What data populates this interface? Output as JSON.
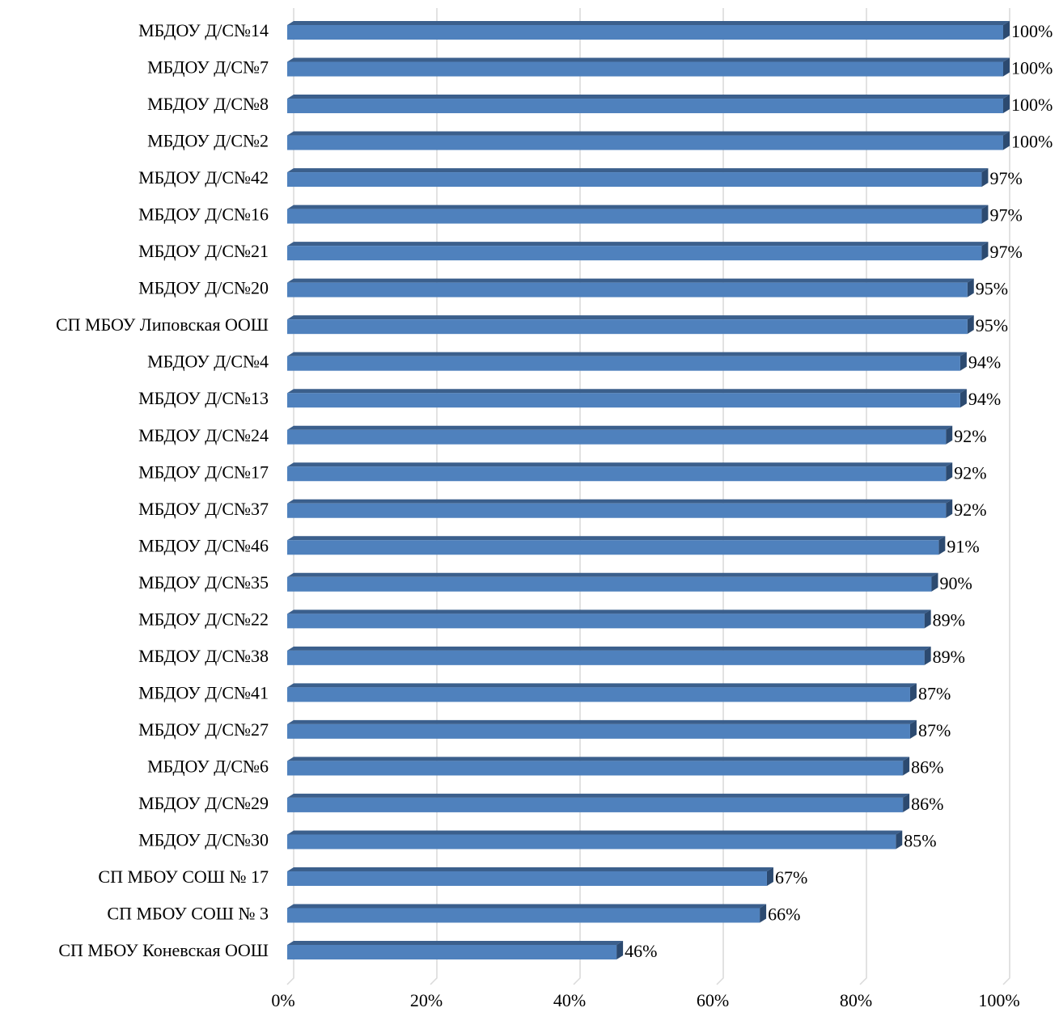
{
  "chart_data": {
    "type": "barh",
    "categories": [
      "МБДОУ Д/С№14",
      "МБДОУ Д/С№7",
      "МБДОУ Д/С№8",
      "МБДОУ Д/С№2",
      "МБДОУ Д/С№42",
      "МБДОУ Д/С№16",
      "МБДОУ Д/С№21",
      "МБДОУ Д/С№20",
      "СП МБОУ Липовская ООШ",
      "МБДОУ Д/С№4",
      "МБДОУ Д/С№13",
      "МБДОУ Д/С№24",
      "МБДОУ Д/С№17",
      "МБДОУ Д/С№37",
      "МБДОУ Д/С№46",
      "МБДОУ Д/С№35",
      "МБДОУ Д/С№22",
      "МБДОУ Д/С№38",
      "МБДОУ Д/С№41",
      "МБДОУ Д/С№27",
      "МБДОУ Д/С№6",
      "МБДОУ Д/С№29",
      "МБДОУ Д/С№30",
      "СП МБОУ СОШ № 17",
      "СП МБОУ СОШ № 3",
      "СП МБОУ Коневская ООШ"
    ],
    "values": [
      100,
      100,
      100,
      100,
      97,
      97,
      97,
      95,
      95,
      94,
      94,
      92,
      92,
      92,
      91,
      90,
      89,
      89,
      87,
      87,
      86,
      86,
      85,
      67,
      66,
      46
    ],
    "value_labels": [
      "100%",
      "100%",
      "100%",
      "100%",
      "97%",
      "97%",
      "97%",
      "95%",
      "95%",
      "94%",
      "94%",
      "92%",
      "92%",
      "92%",
      "91%",
      "90%",
      "89%",
      "89%",
      "87%",
      "87%",
      "86%",
      "86%",
      "85%",
      "67%",
      "66%",
      "46%"
    ],
    "color": "#4f81bd",
    "xlim": [
      0,
      100
    ],
    "xticks": [
      {
        "value": 0,
        "label": "0%"
      },
      {
        "value": 20,
        "label": "20%"
      },
      {
        "value": 40,
        "label": "40%"
      },
      {
        "value": 60,
        "label": "60%"
      },
      {
        "value": 80,
        "label": "80%"
      },
      {
        "value": 100,
        "label": "100%"
      }
    ],
    "grid": true
  }
}
